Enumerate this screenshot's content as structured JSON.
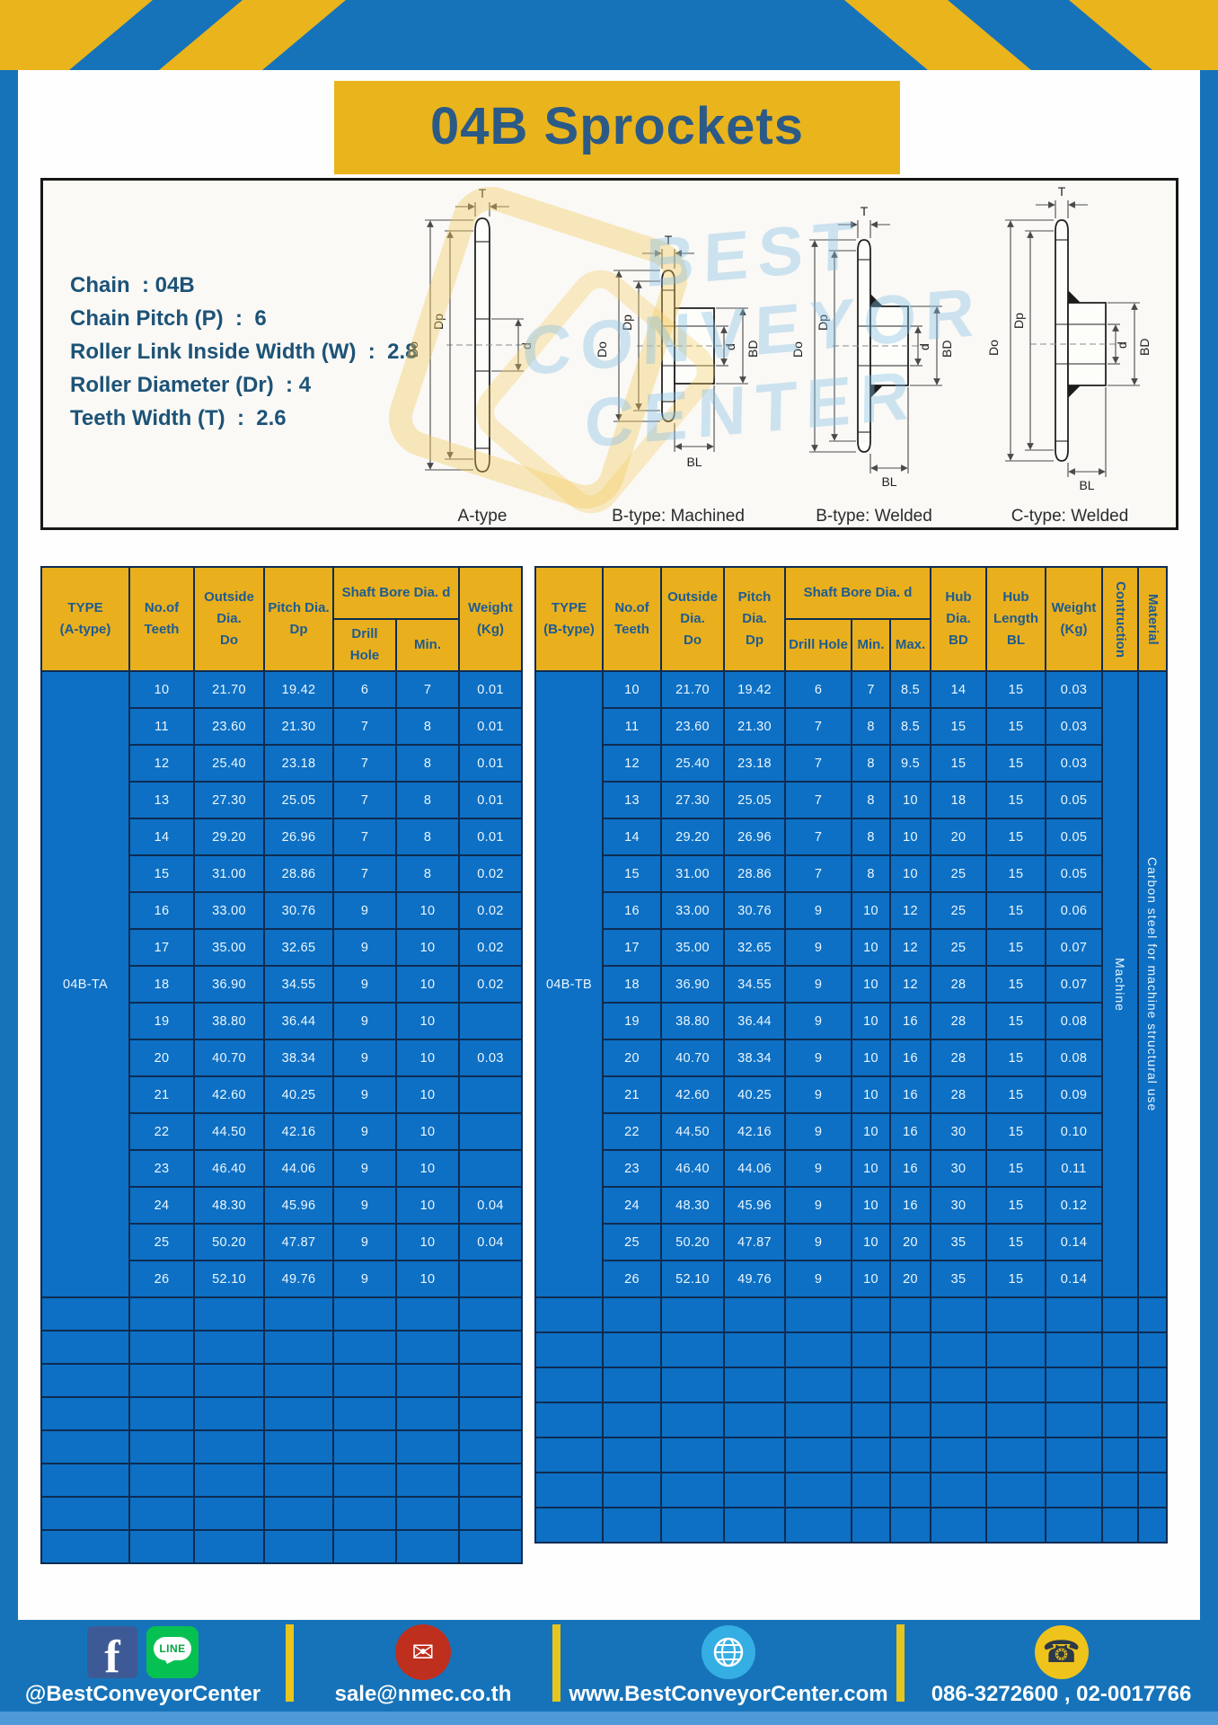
{
  "page": {
    "title": "04B Sprockets"
  },
  "specs": {
    "lines": [
      "Chain  : 04B",
      "Chain Pitch (P)  :  6",
      "Roller Link Inside Width (W)  :  2.8",
      "Roller Diameter (Dr)  : 4",
      "Teeth Width (T)  :  2.6"
    ]
  },
  "diagrams": {
    "labels": [
      "A-type",
      "B-type: Machined",
      "B-type: Welded",
      "C-type: Welded"
    ],
    "dims": {
      "t": "T",
      "outer": "Do",
      "pitch": "Dp",
      "bore": "d",
      "hub": "BD",
      "hub_len": "BL"
    },
    "watermark": {
      "line1": "BEST",
      "line2": "CONVEYOR",
      "line3": "CENTER"
    }
  },
  "table_a": {
    "header": {
      "type": "TYPE\n(A-type)",
      "teeth": "No.of\nTeeth",
      "outside": "Outside\nDia.\nDo",
      "pitch": "Pitch Dia.\nDp",
      "shaft": "Shaft Bore Dia. d",
      "drill": "Drill Hole",
      "min": "Min.",
      "weight": "Weight\n(Kg)"
    },
    "type_value": "04B-TA",
    "empty_rows": 8,
    "rows": [
      {
        "teeth": "10",
        "outside_dia": "21.70",
        "pitch_dia": "19.42",
        "drill_hole": "6",
        "min": "7",
        "weight": "0.01"
      },
      {
        "teeth": "11",
        "outside_dia": "23.60",
        "pitch_dia": "21.30",
        "drill_hole": "7",
        "min": "8",
        "weight": "0.01"
      },
      {
        "teeth": "12",
        "outside_dia": "25.40",
        "pitch_dia": "23.18",
        "drill_hole": "7",
        "min": "8",
        "weight": "0.01"
      },
      {
        "teeth": "13",
        "outside_dia": "27.30",
        "pitch_dia": "25.05",
        "drill_hole": "7",
        "min": "8",
        "weight": "0.01"
      },
      {
        "teeth": "14",
        "outside_dia": "29.20",
        "pitch_dia": "26.96",
        "drill_hole": "7",
        "min": "8",
        "weight": "0.01"
      },
      {
        "teeth": "15",
        "outside_dia": "31.00",
        "pitch_dia": "28.86",
        "drill_hole": "7",
        "min": "8",
        "weight": "0.02"
      },
      {
        "teeth": "16",
        "outside_dia": "33.00",
        "pitch_dia": "30.76",
        "drill_hole": "9",
        "min": "10",
        "weight": "0.02"
      },
      {
        "teeth": "17",
        "outside_dia": "35.00",
        "pitch_dia": "32.65",
        "drill_hole": "9",
        "min": "10",
        "weight": "0.02"
      },
      {
        "teeth": "18",
        "outside_dia": "36.90",
        "pitch_dia": "34.55",
        "drill_hole": "9",
        "min": "10",
        "weight": "0.02"
      },
      {
        "teeth": "19",
        "outside_dia": "38.80",
        "pitch_dia": "36.44",
        "drill_hole": "9",
        "min": "10",
        "weight": ""
      },
      {
        "teeth": "20",
        "outside_dia": "40.70",
        "pitch_dia": "38.34",
        "drill_hole": "9",
        "min": "10",
        "weight": "0.03"
      },
      {
        "teeth": "21",
        "outside_dia": "42.60",
        "pitch_dia": "40.25",
        "drill_hole": "9",
        "min": "10",
        "weight": ""
      },
      {
        "teeth": "22",
        "outside_dia": "44.50",
        "pitch_dia": "42.16",
        "drill_hole": "9",
        "min": "10",
        "weight": ""
      },
      {
        "teeth": "23",
        "outside_dia": "46.40",
        "pitch_dia": "44.06",
        "drill_hole": "9",
        "min": "10",
        "weight": ""
      },
      {
        "teeth": "24",
        "outside_dia": "48.30",
        "pitch_dia": "45.96",
        "drill_hole": "9",
        "min": "10",
        "weight": "0.04"
      },
      {
        "teeth": "25",
        "outside_dia": "50.20",
        "pitch_dia": "47.87",
        "drill_hole": "9",
        "min": "10",
        "weight": "0.04"
      },
      {
        "teeth": "26",
        "outside_dia": "52.10",
        "pitch_dia": "49.76",
        "drill_hole": "9",
        "min": "10",
        "weight": ""
      }
    ]
  },
  "table_b": {
    "header": {
      "type": "TYPE\n(B-type)",
      "teeth": "No.of\nTeeth",
      "outside": "Outside\nDia.\nDo",
      "pitch": "Pitch Dia.\nDp",
      "shaft": "Shaft Bore Dia. d",
      "drill": "Drill Hole",
      "min": "Min.",
      "max": "Max.",
      "hub_dia": "Hub Dia.\nBD",
      "hub_length": "Hub\nLength\nBL",
      "weight": "Weight\n(Kg)",
      "construction": "Contruction",
      "material": "Material"
    },
    "type_value": "04B-TB",
    "construction": "Machine",
    "material": "Carbon steel for machine structural use",
    "empty_rows": 7,
    "rows": [
      {
        "teeth": "10",
        "outside_dia": "21.70",
        "pitch_dia": "19.42",
        "drill_hole": "6",
        "min": "7",
        "max": "8.5",
        "hub_dia": "14",
        "hub_length": "15",
        "weight": "0.03"
      },
      {
        "teeth": "11",
        "outside_dia": "23.60",
        "pitch_dia": "21.30",
        "drill_hole": "7",
        "min": "8",
        "max": "8.5",
        "hub_dia": "15",
        "hub_length": "15",
        "weight": "0.03"
      },
      {
        "teeth": "12",
        "outside_dia": "25.40",
        "pitch_dia": "23.18",
        "drill_hole": "7",
        "min": "8",
        "max": "9.5",
        "hub_dia": "15",
        "hub_length": "15",
        "weight": "0.03"
      },
      {
        "teeth": "13",
        "outside_dia": "27.30",
        "pitch_dia": "25.05",
        "drill_hole": "7",
        "min": "8",
        "max": "10",
        "hub_dia": "18",
        "hub_length": "15",
        "weight": "0.05"
      },
      {
        "teeth": "14",
        "outside_dia": "29.20",
        "pitch_dia": "26.96",
        "drill_hole": "7",
        "min": "8",
        "max": "10",
        "hub_dia": "20",
        "hub_length": "15",
        "weight": "0.05"
      },
      {
        "teeth": "15",
        "outside_dia": "31.00",
        "pitch_dia": "28.86",
        "drill_hole": "7",
        "min": "8",
        "max": "10",
        "hub_dia": "25",
        "hub_length": "15",
        "weight": "0.05"
      },
      {
        "teeth": "16",
        "outside_dia": "33.00",
        "pitch_dia": "30.76",
        "drill_hole": "9",
        "min": "10",
        "max": "12",
        "hub_dia": "25",
        "hub_length": "15",
        "weight": "0.06"
      },
      {
        "teeth": "17",
        "outside_dia": "35.00",
        "pitch_dia": "32.65",
        "drill_hole": "9",
        "min": "10",
        "max": "12",
        "hub_dia": "25",
        "hub_length": "15",
        "weight": "0.07"
      },
      {
        "teeth": "18",
        "outside_dia": "36.90",
        "pitch_dia": "34.55",
        "drill_hole": "9",
        "min": "10",
        "max": "12",
        "hub_dia": "28",
        "hub_length": "15",
        "weight": "0.07"
      },
      {
        "teeth": "19",
        "outside_dia": "38.80",
        "pitch_dia": "36.44",
        "drill_hole": "9",
        "min": "10",
        "max": "16",
        "hub_dia": "28",
        "hub_length": "15",
        "weight": "0.08"
      },
      {
        "teeth": "20",
        "outside_dia": "40.70",
        "pitch_dia": "38.34",
        "drill_hole": "9",
        "min": "10",
        "max": "16",
        "hub_dia": "28",
        "hub_length": "15",
        "weight": "0.08"
      },
      {
        "teeth": "21",
        "outside_dia": "42.60",
        "pitch_dia": "40.25",
        "drill_hole": "9",
        "min": "10",
        "max": "16",
        "hub_dia": "28",
        "hub_length": "15",
        "weight": "0.09"
      },
      {
        "teeth": "22",
        "outside_dia": "44.50",
        "pitch_dia": "42.16",
        "drill_hole": "9",
        "min": "10",
        "max": "16",
        "hub_dia": "30",
        "hub_length": "15",
        "weight": "0.10"
      },
      {
        "teeth": "23",
        "outside_dia": "46.40",
        "pitch_dia": "44.06",
        "drill_hole": "9",
        "min": "10",
        "max": "16",
        "hub_dia": "30",
        "hub_length": "15",
        "weight": "0.11"
      },
      {
        "teeth": "24",
        "outside_dia": "48.30",
        "pitch_dia": "45.96",
        "drill_hole": "9",
        "min": "10",
        "max": "16",
        "hub_dia": "30",
        "hub_length": "15",
        "weight": "0.12"
      },
      {
        "teeth": "25",
        "outside_dia": "50.20",
        "pitch_dia": "47.87",
        "drill_hole": "9",
        "min": "10",
        "max": "20",
        "hub_dia": "35",
        "hub_length": "15",
        "weight": "0.14"
      },
      {
        "teeth": "26",
        "outside_dia": "52.10",
        "pitch_dia": "49.76",
        "drill_hole": "9",
        "min": "10",
        "max": "20",
        "hub_dia": "35",
        "hub_length": "15",
        "weight": "0.14"
      }
    ]
  },
  "footer": {
    "social": {
      "label": "@BestConveyorCenter",
      "facebook_glyph": "f",
      "line_glyph": "LINE"
    },
    "email": {
      "label": "sale@nmec.co.th",
      "icon_glyph": "✉"
    },
    "website": {
      "label": "www.BestConveyorCenter.com"
    },
    "phone": {
      "label": "086-3272600 , 02-0017766",
      "icon_glyph": "☎"
    }
  }
}
